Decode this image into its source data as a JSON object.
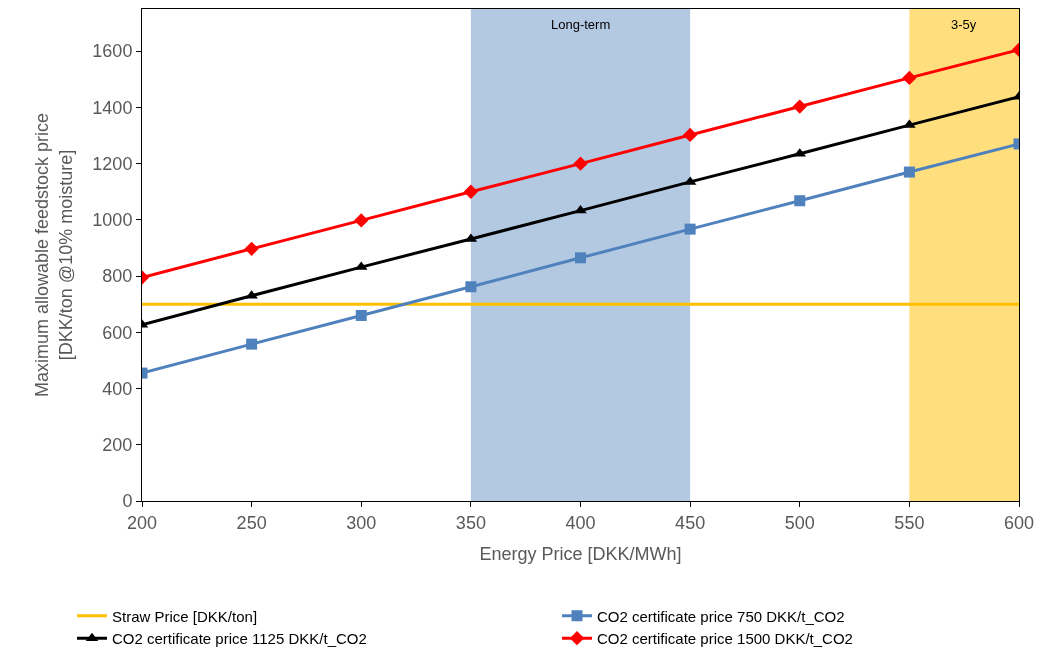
{
  "chart_data": {
    "type": "line",
    "xlabel": "Energy Price [DKK/MWh]",
    "ylabel": "Maximum allowable feedstock price\n[DKK/ton @10% moisture]",
    "x": [
      200,
      250,
      300,
      350,
      400,
      450,
      500,
      550,
      600
    ],
    "series": [
      {
        "name": "Straw Price [DKK/ton]",
        "color": "#ffc000",
        "marker": "none",
        "values": [
          700,
          700,
          700,
          700,
          700,
          700,
          700,
          700,
          700
        ]
      },
      {
        "name": "CO2 certificate price 750 DKK/t_CO2",
        "color": "#4f81bd",
        "marker": "square",
        "values": [
          455,
          558,
          660,
          762,
          865,
          967,
          1068,
          1170,
          1270
        ]
      },
      {
        "name": "CO2 certificate price 1125 DKK/t_CO2",
        "color": "#000000",
        "marker": "triangle",
        "values": [
          627,
          730,
          832,
          932,
          1033,
          1135,
          1235,
          1337,
          1438
        ]
      },
      {
        "name": "CO2 certificate price 1500 DKK/t_CO2",
        "color": "#ff0000",
        "marker": "diamond",
        "values": [
          795,
          897,
          998,
          1100,
          1200,
          1302,
          1403,
          1505,
          1605
        ]
      }
    ],
    "bands": [
      {
        "axis": "x",
        "from": 350,
        "to": 450,
        "label": "Long-term",
        "color": "#a6bedc"
      },
      {
        "axis": "x",
        "from": 550,
        "to": 600,
        "label": "3-5y",
        "color": "#ffd966"
      }
    ],
    "xlim": [
      200,
      600
    ],
    "xticks": [
      200,
      250,
      300,
      350,
      400,
      450,
      500,
      550,
      600
    ],
    "ylim": [
      0,
      1750
    ],
    "yticks": [
      0,
      200,
      400,
      600,
      800,
      1000,
      1200,
      1400,
      1600
    ],
    "grid": false,
    "legend": "bottom",
    "line_style": "solid"
  }
}
